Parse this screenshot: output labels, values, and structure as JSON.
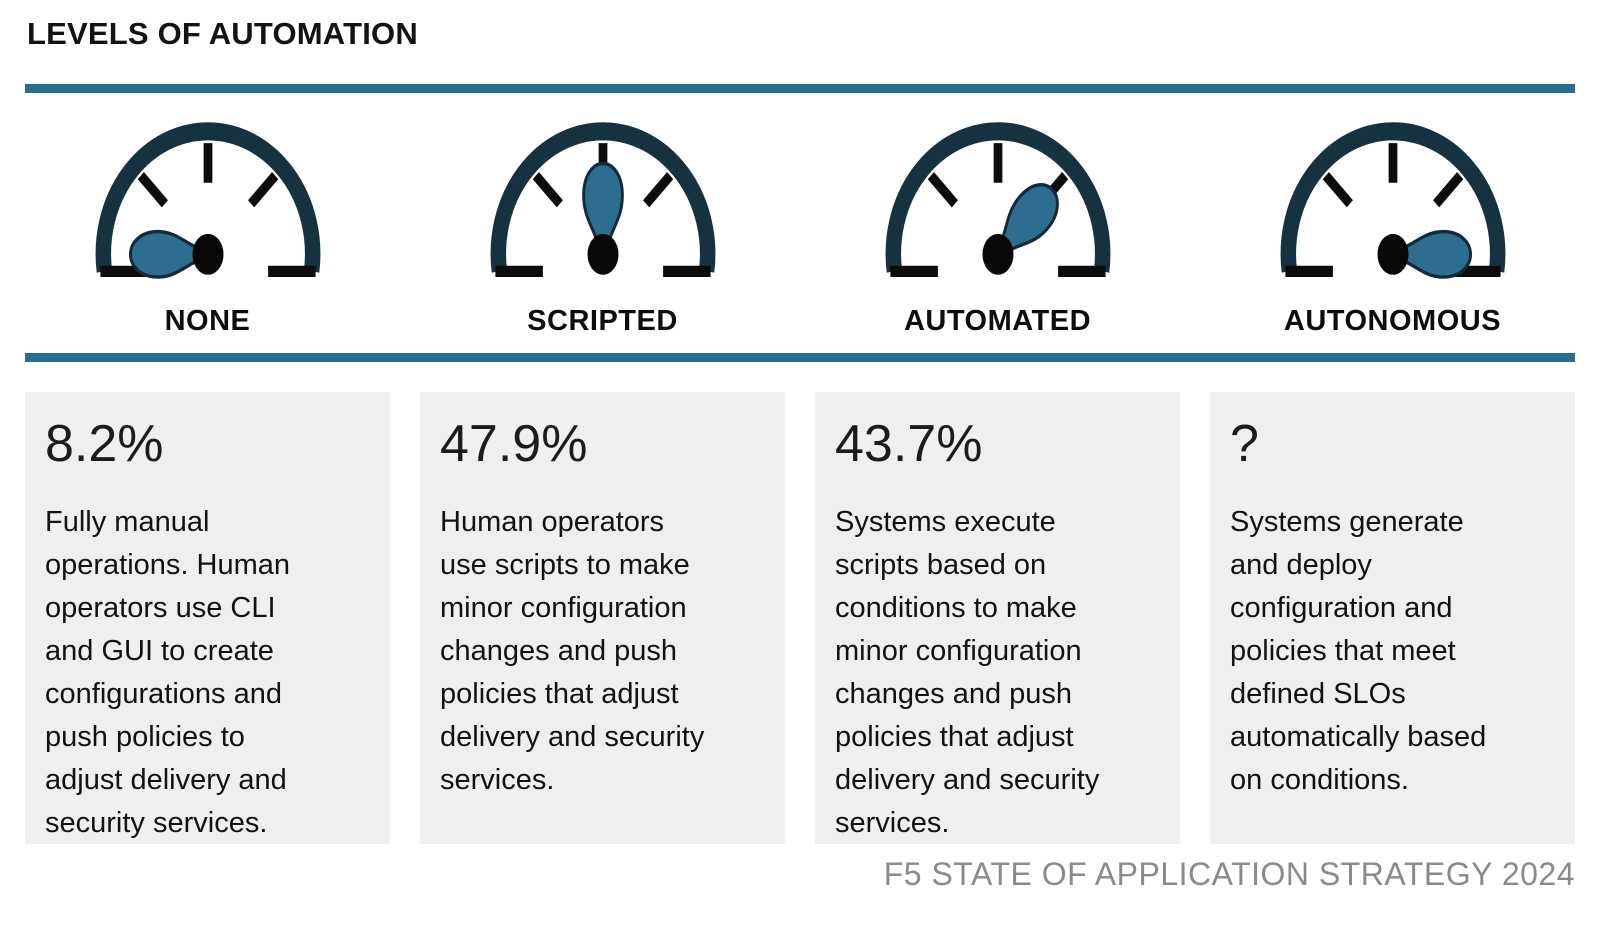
{
  "header": {
    "title": "LEVELS OF AUTOMATION"
  },
  "levels": [
    {
      "label": "NONE",
      "stat": "8.2%",
      "needle_angle": 180,
      "description": "Fully manual\noperations. Human\noperators use CLI\nand GUI to create\nconfigurations and\npush policies to\nadjust delivery and\nsecurity services."
    },
    {
      "label": "SCRIPTED",
      "stat": "47.9%",
      "needle_angle": -90,
      "description": "Human operators\nuse scripts to make\nminor configuration\nchanges and push\npolicies that adjust\ndelivery and security\nservices."
    },
    {
      "label": "AUTOMATED",
      "stat": "43.7%",
      "needle_angle": -45,
      "description": "Systems execute\nscripts based on\nconditions to make\nminor configuration\nchanges and push\npolicies that adjust\ndelivery and security\nservices."
    },
    {
      "label": "AUTONOMOUS",
      "stat": "?",
      "needle_angle": 0,
      "description": "Systems generate\nand deploy\nconfiguration and\npolicies that meet\ndefined SLOs\nautomatically based\non conditions."
    }
  ],
  "footer": {
    "source": "F5 STATE OF APPLICATION STRATEGY 2024"
  },
  "colors": {
    "accent_teal": "#2a6d8f",
    "gauge_arc": "#16313f",
    "needle_fill": "#2d6e90",
    "card_bg": "#efefef",
    "footer_text": "#8a8a8a"
  },
  "chart_data": {
    "type": "gauge",
    "title": "LEVELS OF AUTOMATION",
    "categories": [
      "NONE",
      "SCRIPTED",
      "AUTOMATED",
      "AUTONOMOUS"
    ],
    "values": [
      8.2,
      47.9,
      43.7,
      null
    ],
    "value_labels": [
      "8.2%",
      "47.9%",
      "43.7%",
      "?"
    ],
    "needle_positions_deg_from_right": [
      180,
      -90,
      -45,
      0
    ],
    "legend_position": "none",
    "source": "F5 STATE OF APPLICATION STRATEGY 2024"
  }
}
